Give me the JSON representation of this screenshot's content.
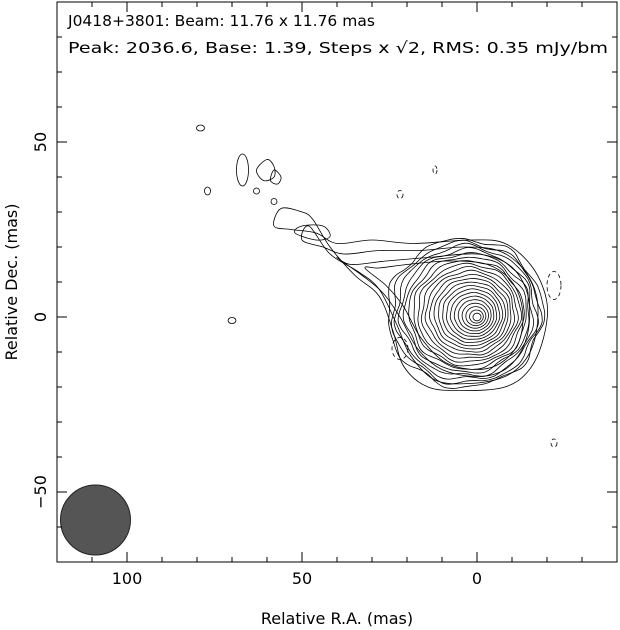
{
  "chart_data": {
    "type": "contour",
    "title_lines": [
      "J0418+3801: Beam: 11.76 x 11.76 mas",
      "Peak: 2036.6, Base: 1.39, Steps x √2, RMS: 0.35 mJy/bm"
    ],
    "xlabel": "Relative R.A. (mas)",
    "ylabel": "Relative Dec. (mas)",
    "xlim": [
      120,
      -40
    ],
    "ylim": [
      -70,
      90
    ],
    "x_ticks": [
      100,
      50,
      0
    ],
    "y_ticks": [
      50,
      0,
      -50
    ],
    "x_tick_labels": [
      "100",
      "50",
      "0"
    ],
    "y_tick_labels": [
      "50",
      "0",
      "−50"
    ],
    "grid": false,
    "beam": {
      "center": [
        109,
        -58
      ],
      "diameter_mas": 11.76,
      "fill": "#555555"
    },
    "peak_position": [
      0,
      0
    ],
    "contour_color": "#000000"
  }
}
